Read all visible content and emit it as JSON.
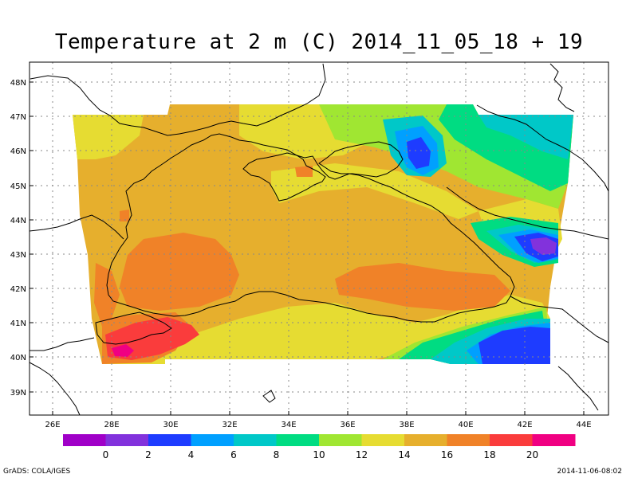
{
  "title": "Temperature at 2 m (C) 2014_11_05_18 + 19",
  "credit": "GrADS: COLA/IGES",
  "timestamp": "2014-11-06-08:02",
  "lon_ticks": [
    "26E",
    "28E",
    "30E",
    "32E",
    "34E",
    "36E",
    "38E",
    "40E",
    "42E",
    "44E"
  ],
  "lat_ticks": [
    "48N",
    "47N",
    "46N",
    "45N",
    "44N",
    "43N",
    "42N",
    "41N",
    "40N",
    "39N"
  ],
  "colorbar": {
    "labels": [
      "0",
      "2",
      "4",
      "6",
      "8",
      "10",
      "12",
      "14",
      "16",
      "18",
      "20"
    ],
    "colors": [
      "#a000c8",
      "#8232dc",
      "#1e3cff",
      "#00a0ff",
      "#00c8c8",
      "#00dc82",
      "#a0e632",
      "#e6dc32",
      "#e6af2d",
      "#f08228",
      "#fa3c3c",
      "#f00082"
    ]
  },
  "map_colors": {
    "t16": "#e6af2d",
    "t18": "#f08228",
    "t20": "#fa3c3c",
    "t22": "#f00082",
    "t14": "#e6dc32",
    "t12": "#a0e632",
    "t10": "#00dc82",
    "t8": "#00c8c8",
    "t6": "#00a0ff",
    "t4": "#1e3cff",
    "t2": "#8232dc"
  }
}
